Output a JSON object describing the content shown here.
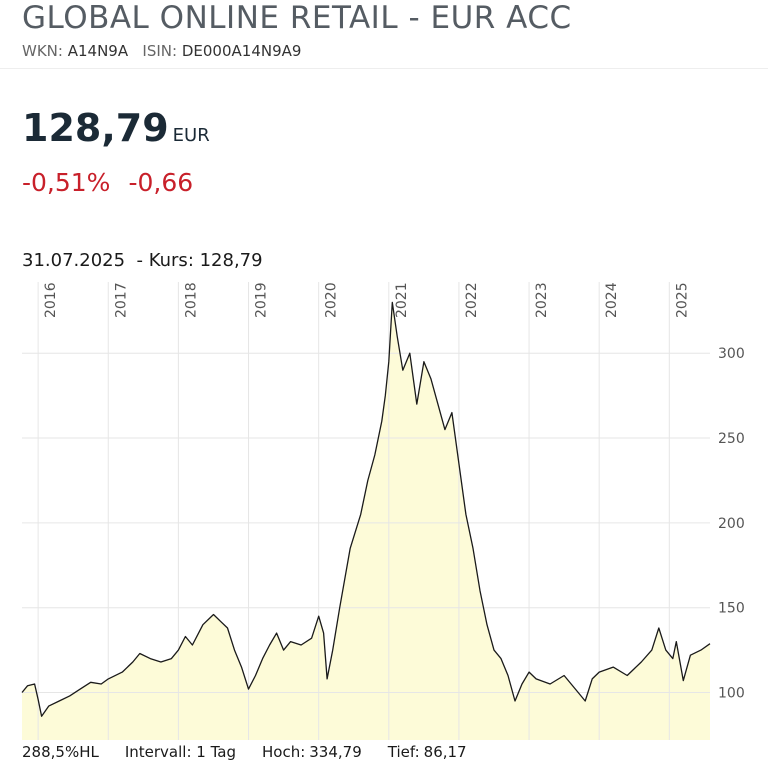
{
  "header": {
    "title": "GLOBAL ONLINE RETAIL - EUR ACC",
    "wkn_label": "WKN:",
    "wkn": "A14N9A",
    "isin_label": "ISIN:",
    "isin": "DE000A14N9A9"
  },
  "quote": {
    "price": "128,79",
    "currency": "EUR",
    "change_pct": "-0,51%",
    "change_abs": "-0,66",
    "date_line": "31.07.2025  - Kurs: 128,79"
  },
  "footer": {
    "hl": "288,5%HL",
    "interval": "Intervall: 1 Tag",
    "high_label": "Hoch:",
    "high": "334,79",
    "low_label": "Tief:",
    "low": "86,17"
  },
  "chart_data": {
    "type": "area",
    "color": "#1a1a1a",
    "fill": "#fdfbd8",
    "grid": true,
    "x": [
      2015.77,
      2015.85,
      2015.95,
      2016.0,
      2016.05,
      2016.15,
      2016.3,
      2016.45,
      2016.6,
      2016.75,
      2016.9,
      2017.0,
      2017.2,
      2017.35,
      2017.45,
      2017.6,
      2017.75,
      2017.9,
      2018.0,
      2018.1,
      2018.2,
      2018.35,
      2018.5,
      2018.6,
      2018.7,
      2018.8,
      2018.9,
      2019.0,
      2019.1,
      2019.2,
      2019.3,
      2019.4,
      2019.5,
      2019.6,
      2019.75,
      2019.9,
      2020.0,
      2020.07,
      2020.12,
      2020.2,
      2020.3,
      2020.45,
      2020.6,
      2020.7,
      2020.8,
      2020.9,
      2020.95,
      2021.0,
      2021.05,
      2021.12,
      2021.2,
      2021.3,
      2021.4,
      2021.5,
      2021.6,
      2021.7,
      2021.8,
      2021.9,
      2022.0,
      2022.1,
      2022.2,
      2022.3,
      2022.4,
      2022.5,
      2022.6,
      2022.7,
      2022.8,
      2022.9,
      2023.0,
      2023.1,
      2023.3,
      2023.5,
      2023.7,
      2023.8,
      2023.9,
      2024.0,
      2024.2,
      2024.4,
      2024.6,
      2024.75,
      2024.85,
      2024.95,
      2025.05,
      2025.1,
      2025.2,
      2025.3,
      2025.45,
      2025.58
    ],
    "values": [
      100,
      104,
      105,
      96,
      86,
      92,
      95,
      98,
      102,
      106,
      105,
      108,
      112,
      118,
      123,
      120,
      118,
      120,
      125,
      133,
      128,
      140,
      146,
      142,
      138,
      125,
      115,
      102,
      110,
      120,
      128,
      135,
      125,
      130,
      128,
      132,
      145,
      135,
      108,
      125,
      150,
      185,
      205,
      225,
      240,
      260,
      275,
      295,
      330,
      310,
      290,
      300,
      270,
      295,
      285,
      270,
      255,
      265,
      235,
      205,
      185,
      160,
      140,
      125,
      120,
      110,
      95,
      105,
      112,
      108,
      105,
      110,
      100,
      95,
      108,
      112,
      115,
      110,
      118,
      125,
      138,
      125,
      120,
      130,
      107,
      122,
      125,
      128.79
    ],
    "xlim": [
      2015.77,
      2025.58
    ],
    "xticks": [
      2016,
      2017,
      2018,
      2019,
      2020,
      2021,
      2022,
      2023,
      2024,
      2025
    ],
    "ylim": [
      72,
      342
    ],
    "yticks": [
      100,
      150,
      200,
      250,
      300
    ]
  }
}
